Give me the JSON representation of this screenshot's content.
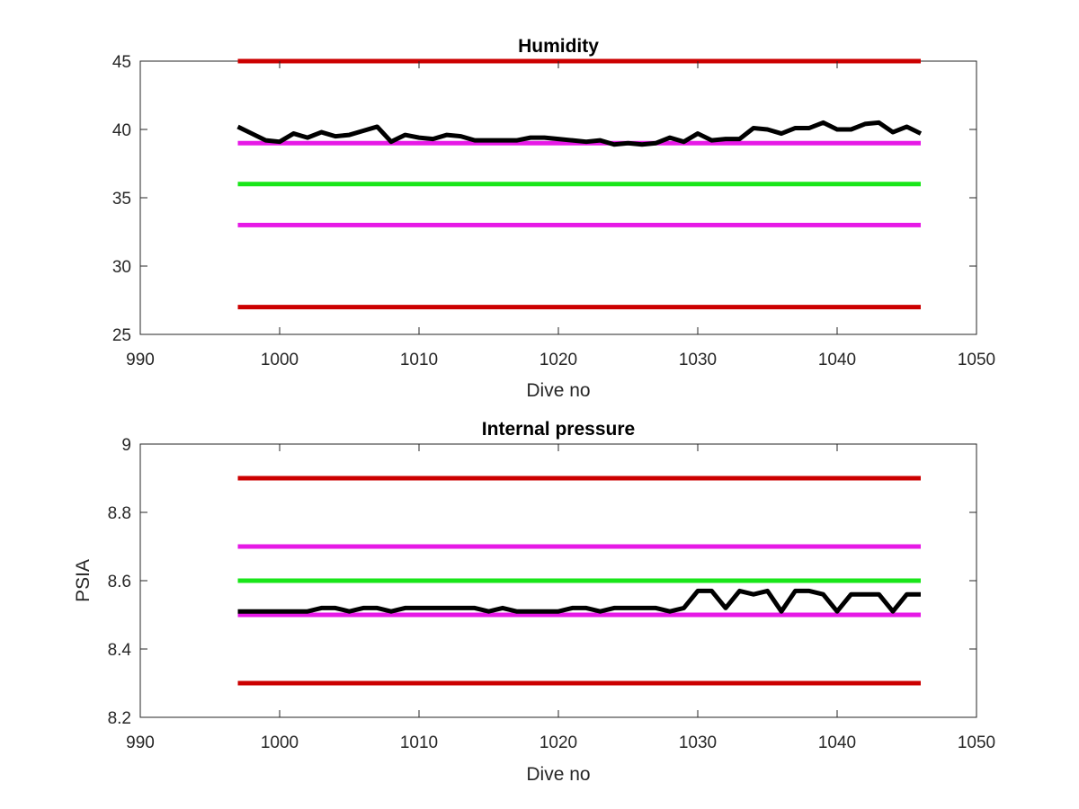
{
  "chart_data": [
    {
      "type": "line",
      "title": "Humidity",
      "xlabel": "Dive no",
      "ylabel": "",
      "xlim": [
        990,
        1050
      ],
      "ylim": [
        25,
        45
      ],
      "xticks": [
        990,
        1000,
        1010,
        1020,
        1030,
        1040,
        1050
      ],
      "yticks": [
        25,
        30,
        35,
        40,
        45
      ],
      "grid": false,
      "reference_lines": [
        {
          "y": 45,
          "x": [
            997,
            1046
          ],
          "color": "#cc0000"
        },
        {
          "y": 39,
          "x": [
            997,
            1046
          ],
          "color": "#e619e6"
        },
        {
          "y": 36,
          "x": [
            997,
            1046
          ],
          "color": "#19e619"
        },
        {
          "y": 33,
          "x": [
            997,
            1046
          ],
          "color": "#e619e6"
        },
        {
          "y": 27,
          "x": [
            997,
            1046
          ],
          "color": "#cc0000"
        }
      ],
      "series": [
        {
          "color": "#000000",
          "x": [
            997,
            998,
            999,
            1000,
            1001,
            1002,
            1003,
            1004,
            1005,
            1006,
            1007,
            1008,
            1009,
            1010,
            1011,
            1012,
            1013,
            1014,
            1015,
            1016,
            1017,
            1018,
            1019,
            1020,
            1021,
            1022,
            1023,
            1024,
            1025,
            1026,
            1027,
            1028,
            1029,
            1030,
            1031,
            1032,
            1033,
            1034,
            1035,
            1036,
            1037,
            1038,
            1039,
            1040,
            1041,
            1042,
            1043,
            1044,
            1045,
            1046
          ],
          "values": [
            40.2,
            39.7,
            39.2,
            39.1,
            39.7,
            39.4,
            39.8,
            39.5,
            39.6,
            39.9,
            40.2,
            39.1,
            39.6,
            39.4,
            39.3,
            39.6,
            39.5,
            39.2,
            39.2,
            39.2,
            39.2,
            39.4,
            39.4,
            39.3,
            39.2,
            39.1,
            39.2,
            38.9,
            39.0,
            38.9,
            39.0,
            39.4,
            39.1,
            39.7,
            39.2,
            39.3,
            39.3,
            40.1,
            40.0,
            39.7,
            40.1,
            40.1,
            40.5,
            40.0,
            40.0,
            40.4,
            40.5,
            39.8,
            40.2,
            39.7
          ]
        }
      ]
    },
    {
      "type": "line",
      "title": "Internal pressure",
      "xlabel": "Dive no",
      "ylabel": "PSIA",
      "xlim": [
        990,
        1050
      ],
      "ylim": [
        8.2,
        9
      ],
      "xticks": [
        990,
        1000,
        1010,
        1020,
        1030,
        1040,
        1050
      ],
      "yticks": [
        8.2,
        8.4,
        8.6,
        8.8,
        9
      ],
      "grid": false,
      "reference_lines": [
        {
          "y": 8.9,
          "x": [
            997,
            1046
          ],
          "color": "#cc0000"
        },
        {
          "y": 8.7,
          "x": [
            997,
            1046
          ],
          "color": "#e619e6"
        },
        {
          "y": 8.6,
          "x": [
            997,
            1046
          ],
          "color": "#19e619"
        },
        {
          "y": 8.5,
          "x": [
            997,
            1046
          ],
          "color": "#e619e6"
        },
        {
          "y": 8.3,
          "x": [
            997,
            1046
          ],
          "color": "#cc0000"
        }
      ],
      "series": [
        {
          "color": "#000000",
          "x": [
            997,
            998,
            999,
            1000,
            1001,
            1002,
            1003,
            1004,
            1005,
            1006,
            1007,
            1008,
            1009,
            1010,
            1011,
            1012,
            1013,
            1014,
            1015,
            1016,
            1017,
            1018,
            1019,
            1020,
            1021,
            1022,
            1023,
            1024,
            1025,
            1026,
            1027,
            1028,
            1029,
            1030,
            1031,
            1032,
            1033,
            1034,
            1035,
            1036,
            1037,
            1038,
            1039,
            1040,
            1041,
            1042,
            1043,
            1044,
            1045,
            1046
          ],
          "values": [
            8.51,
            8.51,
            8.51,
            8.51,
            8.51,
            8.51,
            8.52,
            8.52,
            8.51,
            8.52,
            8.52,
            8.51,
            8.52,
            8.52,
            8.52,
            8.52,
            8.52,
            8.52,
            8.51,
            8.52,
            8.51,
            8.51,
            8.51,
            8.51,
            8.52,
            8.52,
            8.51,
            8.52,
            8.52,
            8.52,
            8.52,
            8.51,
            8.52,
            8.57,
            8.57,
            8.52,
            8.57,
            8.56,
            8.57,
            8.51,
            8.57,
            8.57,
            8.56,
            8.51,
            8.56,
            8.56,
            8.56,
            8.51,
            8.56,
            8.56
          ]
        }
      ]
    }
  ]
}
